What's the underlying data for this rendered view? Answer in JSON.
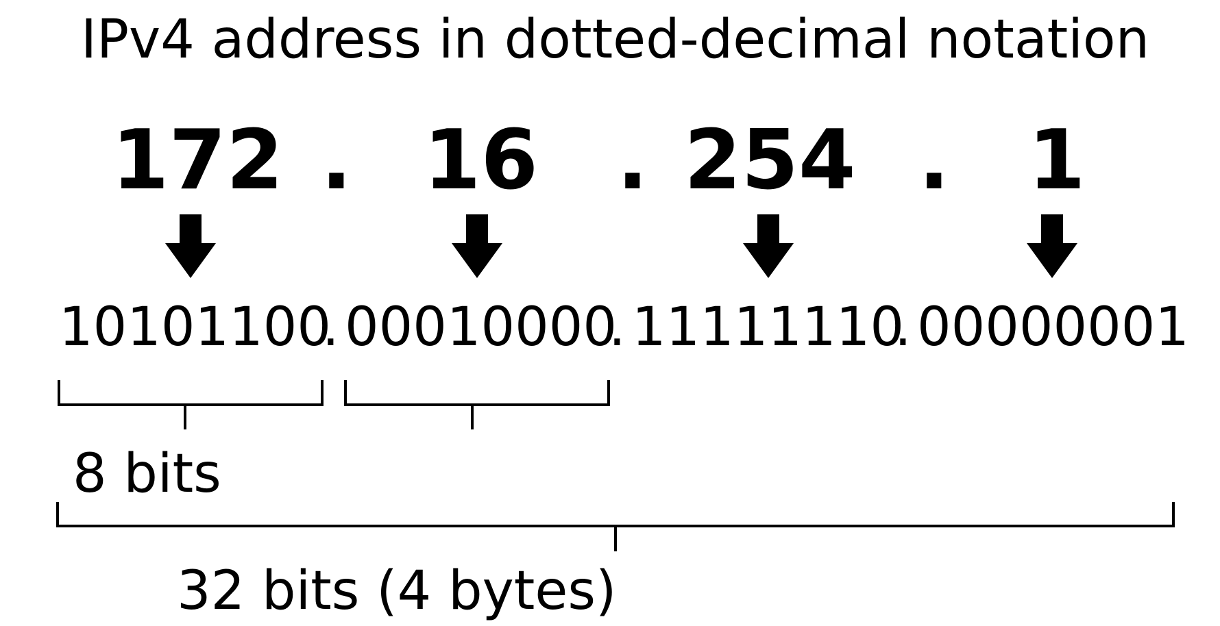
{
  "title": "IPv4 address in dotted-decimal notation",
  "octets": [
    {
      "decimal": "172",
      "binary": "10101100"
    },
    {
      "decimal": "16",
      "binary": "00010000"
    },
    {
      "decimal": "254",
      "binary": "11111110"
    },
    {
      "decimal": "1",
      "binary": "00000001"
    }
  ],
  "separator": ".",
  "labels": {
    "byte": "8 bits",
    "total": "32 bits (4 bytes)"
  },
  "colors": {
    "foreground": "#000000",
    "background": "#ffffff"
  }
}
